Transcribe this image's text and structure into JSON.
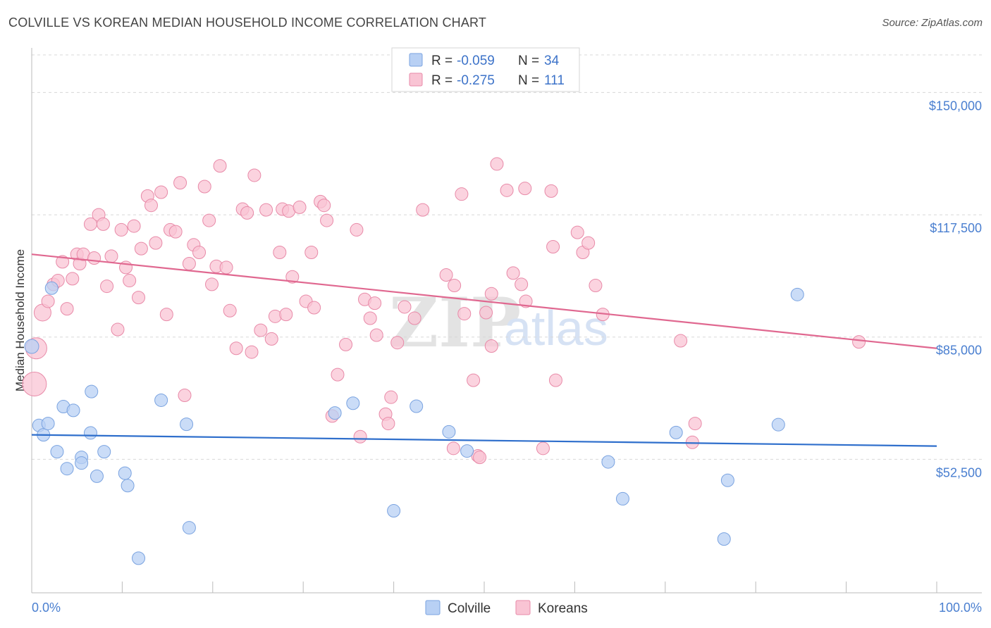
{
  "title": "COLVILLE VS KOREAN MEDIAN HOUSEHOLD INCOME CORRELATION CHART",
  "source": "Source: ZipAtlas.com",
  "watermark": {
    "zip": "ZIP",
    "atlas": "atlas"
  },
  "colors": {
    "colville_fill": "#b8d0f4",
    "colville_stroke": "#7aa3e0",
    "colville_line": "#2f6fcc",
    "koreans_fill": "#f9c4d4",
    "koreans_stroke": "#e88aa8",
    "koreans_line": "#e06890",
    "grid": "#d8d8d8",
    "tick_label": "#4a7fd0"
  },
  "legend": {
    "rows": [
      {
        "r_label": "R =",
        "r_value": "-0.059",
        "n_label": "N =",
        "n_value": "34"
      },
      {
        "r_label": "R =",
        "r_value": "-0.275",
        "n_label": "N =",
        "n_value": "111"
      }
    ]
  },
  "chart_data": {
    "type": "scatter",
    "title": "COLVILLE VS KOREAN MEDIAN HOUSEHOLD INCOME CORRELATION CHART",
    "xlabel": "",
    "ylabel": "Median Household Income",
    "xlim": [
      0,
      100
    ],
    "ylim": [
      17000,
      160000
    ],
    "x_tick_labels": [
      "0.0%",
      "100.0%"
    ],
    "y_ticks": [
      52500,
      85000,
      117500,
      150000
    ],
    "y_tick_labels": [
      "$52,500",
      "$85,000",
      "$117,500",
      "$150,000"
    ],
    "legend_position": "top-center",
    "series": [
      {
        "name": "Colville",
        "trend": {
          "x": [
            0,
            100
          ],
          "y": [
            59000,
            56000
          ]
        },
        "points": [
          {
            "x": 0.0,
            "y": 82500,
            "size": 10
          },
          {
            "x": 0.8,
            "y": 61500
          },
          {
            "x": 1.3,
            "y": 59000
          },
          {
            "x": 1.8,
            "y": 62000
          },
          {
            "x": 2.2,
            "y": 98000
          },
          {
            "x": 2.8,
            "y": 54500
          },
          {
            "x": 3.5,
            "y": 66500
          },
          {
            "x": 3.9,
            "y": 50000
          },
          {
            "x": 4.6,
            "y": 65500
          },
          {
            "x": 5.5,
            "y": 53000
          },
          {
            "x": 5.5,
            "y": 51500
          },
          {
            "x": 6.5,
            "y": 59500
          },
          {
            "x": 6.6,
            "y": 70500
          },
          {
            "x": 7.2,
            "y": 48000
          },
          {
            "x": 8.0,
            "y": 54500
          },
          {
            "x": 10.3,
            "y": 48800
          },
          {
            "x": 10.6,
            "y": 45500
          },
          {
            "x": 11.8,
            "y": 26200
          },
          {
            "x": 14.3,
            "y": 68200
          },
          {
            "x": 17.1,
            "y": 61800
          },
          {
            "x": 17.4,
            "y": 34300
          },
          {
            "x": 33.5,
            "y": 64800
          },
          {
            "x": 35.5,
            "y": 67400
          },
          {
            "x": 40.0,
            "y": 38800
          },
          {
            "x": 42.5,
            "y": 66600
          },
          {
            "x": 46.1,
            "y": 59800
          },
          {
            "x": 48.1,
            "y": 54700
          },
          {
            "x": 63.7,
            "y": 51800
          },
          {
            "x": 65.3,
            "y": 42000
          },
          {
            "x": 71.2,
            "y": 59600
          },
          {
            "x": 76.9,
            "y": 46900
          },
          {
            "x": 76.5,
            "y": 31300
          },
          {
            "x": 82.5,
            "y": 61700
          },
          {
            "x": 84.6,
            "y": 96300
          }
        ]
      },
      {
        "name": "Koreans",
        "trend": {
          "x": [
            0,
            100
          ],
          "y": [
            107000,
            82000
          ]
        },
        "points": [
          {
            "x": 0.5,
            "y": 82000,
            "size": 15
          },
          {
            "x": 0.3,
            "y": 72500,
            "size": 17
          },
          {
            "x": 1.2,
            "y": 91500,
            "size": 12
          },
          {
            "x": 1.8,
            "y": 94500
          },
          {
            "x": 2.4,
            "y": 99000
          },
          {
            "x": 2.9,
            "y": 100000
          },
          {
            "x": 3.4,
            "y": 105000
          },
          {
            "x": 3.9,
            "y": 92500
          },
          {
            "x": 4.5,
            "y": 100500
          },
          {
            "x": 5.0,
            "y": 107000
          },
          {
            "x": 5.3,
            "y": 104500
          },
          {
            "x": 5.7,
            "y": 107000
          },
          {
            "x": 6.5,
            "y": 115000
          },
          {
            "x": 6.9,
            "y": 106000
          },
          {
            "x": 7.4,
            "y": 117500
          },
          {
            "x": 7.9,
            "y": 115000
          },
          {
            "x": 8.3,
            "y": 98500
          },
          {
            "x": 8.8,
            "y": 106500
          },
          {
            "x": 9.5,
            "y": 87000
          },
          {
            "x": 9.9,
            "y": 113500
          },
          {
            "x": 10.4,
            "y": 103500
          },
          {
            "x": 10.8,
            "y": 100000
          },
          {
            "x": 11.3,
            "y": 114500
          },
          {
            "x": 11.8,
            "y": 95500
          },
          {
            "x": 12.1,
            "y": 108500
          },
          {
            "x": 12.8,
            "y": 122500
          },
          {
            "x": 13.2,
            "y": 120000
          },
          {
            "x": 13.7,
            "y": 110000
          },
          {
            "x": 14.3,
            "y": 123500
          },
          {
            "x": 14.9,
            "y": 91000
          },
          {
            "x": 15.3,
            "y": 113500
          },
          {
            "x": 15.9,
            "y": 113000
          },
          {
            "x": 16.4,
            "y": 126000
          },
          {
            "x": 16.9,
            "y": 69500
          },
          {
            "x": 17.4,
            "y": 104500
          },
          {
            "x": 17.9,
            "y": 109500
          },
          {
            "x": 18.5,
            "y": 107500
          },
          {
            "x": 19.1,
            "y": 125000
          },
          {
            "x": 19.6,
            "y": 116000
          },
          {
            "x": 19.9,
            "y": 99000
          },
          {
            "x": 20.4,
            "y": 103800
          },
          {
            "x": 20.8,
            "y": 130500
          },
          {
            "x": 21.5,
            "y": 103500
          },
          {
            "x": 21.9,
            "y": 92000
          },
          {
            "x": 22.6,
            "y": 82000
          },
          {
            "x": 23.3,
            "y": 119000
          },
          {
            "x": 23.8,
            "y": 118000
          },
          {
            "x": 24.3,
            "y": 81000
          },
          {
            "x": 24.6,
            "y": 128000
          },
          {
            "x": 25.3,
            "y": 86800
          },
          {
            "x": 25.9,
            "y": 118800
          },
          {
            "x": 26.5,
            "y": 84500
          },
          {
            "x": 26.9,
            "y": 90500
          },
          {
            "x": 27.4,
            "y": 107500
          },
          {
            "x": 27.7,
            "y": 119000
          },
          {
            "x": 28.1,
            "y": 91000
          },
          {
            "x": 28.4,
            "y": 118500
          },
          {
            "x": 28.8,
            "y": 101000
          },
          {
            "x": 29.6,
            "y": 119500
          },
          {
            "x": 30.3,
            "y": 94500
          },
          {
            "x": 30.9,
            "y": 107500
          },
          {
            "x": 31.2,
            "y": 92800
          },
          {
            "x": 31.9,
            "y": 121000
          },
          {
            "x": 32.3,
            "y": 120000
          },
          {
            "x": 32.6,
            "y": 116000
          },
          {
            "x": 33.2,
            "y": 64000
          },
          {
            "x": 33.8,
            "y": 75000
          },
          {
            "x": 34.7,
            "y": 83000
          },
          {
            "x": 35.9,
            "y": 113500
          },
          {
            "x": 36.3,
            "y": 58500
          },
          {
            "x": 36.8,
            "y": 95000
          },
          {
            "x": 37.4,
            "y": 90000
          },
          {
            "x": 37.9,
            "y": 94000
          },
          {
            "x": 38.1,
            "y": 85500
          },
          {
            "x": 39.1,
            "y": 64500
          },
          {
            "x": 39.7,
            "y": 69000
          },
          {
            "x": 40.4,
            "y": 83500
          },
          {
            "x": 39.4,
            "y": 62000
          },
          {
            "x": 41.2,
            "y": 93000
          },
          {
            "x": 42.3,
            "y": 90000
          },
          {
            "x": 43.2,
            "y": 118800
          },
          {
            "x": 45.8,
            "y": 101500
          },
          {
            "x": 46.7,
            "y": 98700
          },
          {
            "x": 46.6,
            "y": 55400
          },
          {
            "x": 47.5,
            "y": 123000
          },
          {
            "x": 47.8,
            "y": 91200
          },
          {
            "x": 48.8,
            "y": 73500
          },
          {
            "x": 50.2,
            "y": 91500
          },
          {
            "x": 50.8,
            "y": 96500
          },
          {
            "x": 49.3,
            "y": 53400
          },
          {
            "x": 49.5,
            "y": 53000
          },
          {
            "x": 50.8,
            "y": 82600
          },
          {
            "x": 51.4,
            "y": 131000
          },
          {
            "x": 52.5,
            "y": 124000
          },
          {
            "x": 53.2,
            "y": 102000
          },
          {
            "x": 54.1,
            "y": 99000
          },
          {
            "x": 54.5,
            "y": 124500
          },
          {
            "x": 54.6,
            "y": 94500
          },
          {
            "x": 57.6,
            "y": 109000
          },
          {
            "x": 57.4,
            "y": 123800
          },
          {
            "x": 56.5,
            "y": 55400
          },
          {
            "x": 57.9,
            "y": 73500
          },
          {
            "x": 60.3,
            "y": 112800
          },
          {
            "x": 60.9,
            "y": 107500
          },
          {
            "x": 61.5,
            "y": 110000
          },
          {
            "x": 62.3,
            "y": 98700
          },
          {
            "x": 63.1,
            "y": 91000
          },
          {
            "x": 71.7,
            "y": 84000
          },
          {
            "x": 73.3,
            "y": 62000
          },
          {
            "x": 73.0,
            "y": 57000
          },
          {
            "x": 91.4,
            "y": 83700
          }
        ]
      }
    ]
  }
}
